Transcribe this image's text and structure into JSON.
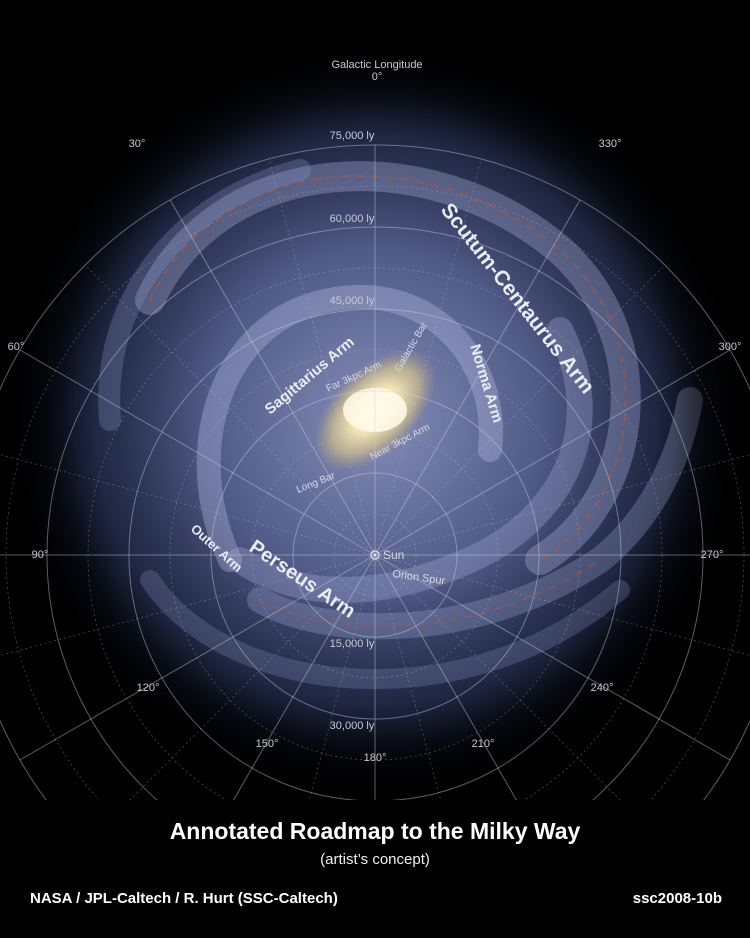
{
  "figure": {
    "top_axis_label": "Galactic Longitude",
    "longitudes": [
      "0°",
      "30°",
      "60°",
      "90°",
      "120°",
      "150°",
      "180°",
      "210°",
      "240°",
      "270°",
      "300°",
      "330°"
    ],
    "distances": [
      "75,000 ly",
      "60,000 ly",
      "45,000 ly",
      "15,000 ly",
      "30,000 ly"
    ],
    "arms": {
      "scutum_centaurus": "Scutum-Centaurus Arm",
      "norma": "Norma Arm",
      "sagittarius": "Sagittarius Arm",
      "perseus": "Perseus Arm",
      "outer": "Outer Arm",
      "far_3kpc": "Far 3kpc Arm",
      "near_3kpc": "Near 3kpc Arm",
      "galactic_bar": "Galactic Bar",
      "long_bar": "Long Bar",
      "orion_spur": "Orion Spur",
      "sun": "Sun"
    }
  },
  "footer": {
    "title": "Annotated Roadmap to the Milky Way",
    "subtitle": "(artist’s concept)",
    "credit": "NASA / JPL-Caltech / R. Hurt (SSC-Caltech)",
    "id": "ssc2008-10b"
  }
}
